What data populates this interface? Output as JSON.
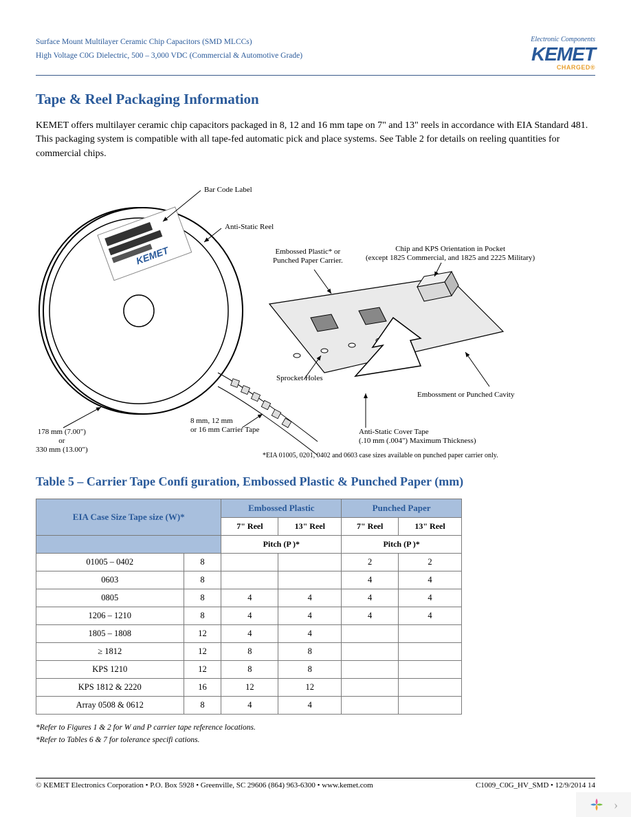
{
  "header": {
    "line1": "Surface Mount Multilayer Ceramic Chip Capacitors (SMD MLCCs)",
    "line2": "High Voltage C0G Dielectric, 500 – 3,000 VDC (Commercial & Automotive Grade)",
    "ec": "Electronic Components",
    "brand": "KEMET",
    "tagline": "CHARGED®"
  },
  "section_title": "Tape & Reel Packaging Information",
  "intro": "KEMET offers multilayer ceramic chip capacitors packaged in 8, 12 and 16 mm tape on 7\" and 13\" reels in accordance with EIA Standard 481. This packaging system is compatible with all tape-fed automatic pick and place systems. See Table 2 for details on reeling quantities for commercial chips.",
  "diagram": {
    "labels": {
      "barcode": "Bar Code Label",
      "antistatic_reel": "Anti-Static Reel",
      "embossed": "Embossed Plastic* or\nPunched Paper Carrier.",
      "chip_orient": "Chip and KPS Orientation in Pocket\n(except 1825 Commercial, and 1825 and 2225 Military)",
      "sprocket": "Sprocket Holes",
      "embossment": "Embossment or Punched Cavity",
      "carrier_tape": "8 mm, 12 mm\nor 16 mm Carrier Tape",
      "cover_tape": "Anti-Static Cover Tape\n(.10 mm (.004\") Maximum Thickness)",
      "reel_dim": "178 mm (7.00\")\nor\n330 mm (13.00\")",
      "eia_note": "*EIA 01005, 0201, 0402 and 0603 case sizes available on punched paper carrier only."
    }
  },
  "table": {
    "title": "Table 5 – Carrier Tape Confi guration, Embossed Plastic & Punched Paper (mm)",
    "col_main": "EIA Case Size Tape size (W)*",
    "col_emb": "Embossed Plastic",
    "col_pun": "Punched Paper",
    "col_7": "7\" Reel",
    "col_13": "13\" Reel",
    "col_pitch": "Pitch (P )*",
    "rows": [
      {
        "case": "01005 – 0402",
        "w": "8",
        "e7": "",
        "e13": "",
        "p7": "2",
        "p13": "2"
      },
      {
        "case": "0603",
        "w": "8",
        "e7": "",
        "e13": "",
        "p7": "4",
        "p13": "4"
      },
      {
        "case": "0805",
        "w": "8",
        "e7": "4",
        "e13": "4",
        "p7": "4",
        "p13": "4"
      },
      {
        "case": "1206 – 1210",
        "w": "8",
        "e7": "4",
        "e13": "4",
        "p7": "4",
        "p13": "4"
      },
      {
        "case": "1805 – 1808",
        "w": "12",
        "e7": "4",
        "e13": "4",
        "p7": "",
        "p13": ""
      },
      {
        "case": "≥ 1812",
        "w": "12",
        "e7": "8",
        "e13": "8",
        "p7": "",
        "p13": ""
      },
      {
        "case": "KPS 1210",
        "w": "12",
        "e7": "8",
        "e13": "8",
        "p7": "",
        "p13": ""
      },
      {
        "case": "KPS 1812 & 2220",
        "w": "16",
        "e7": "12",
        "e13": "12",
        "p7": "",
        "p13": ""
      },
      {
        "case": "Array 0508 & 0612",
        "w": "8",
        "e7": "4",
        "e13": "4",
        "p7": "",
        "p13": ""
      }
    ]
  },
  "footnotes": {
    "f1": "*Refer to Figures 1 & 2 for W and P   carrier tape reference locations.",
    "f2": "*Refer to Tables 6 & 7 for tolerance specifi cations."
  },
  "footer": {
    "left": "© KEMET Electronics Corporation • P.O. Box 5928 • Greenville, SC 29606 (864) 963-6300 • www.kemet.com",
    "right": "C1009_C0G_HV_SMD • 12/9/2014 14"
  },
  "colors": {
    "brand_blue": "#2a5a9a",
    "header_bg": "#a8bfdd",
    "orange": "#e8a030"
  }
}
